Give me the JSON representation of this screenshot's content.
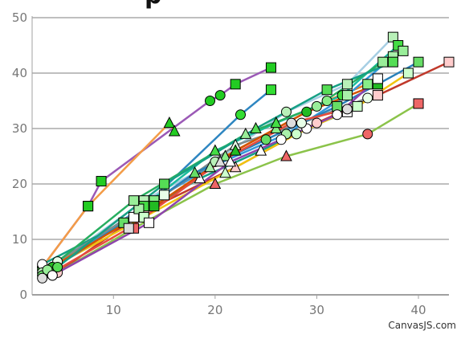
{
  "credit": "CanvasJS.com",
  "title_fragment": "p",
  "colors": {
    "grid": "#bfbfbf",
    "axis": "#a0a0a0",
    "marker_stroke": "#000000"
  },
  "chart_data": {
    "type": "line",
    "title": "",
    "xlabel": "",
    "ylabel": "",
    "xlim": [
      2,
      43
    ],
    "ylim": [
      0,
      50
    ],
    "x_ticks": [
      10,
      20,
      30,
      40
    ],
    "y_ticks": [
      0,
      10,
      20,
      30,
      40,
      50
    ],
    "grid": "horizontal",
    "legend": "none",
    "series": [
      {
        "color": "#9b59b6",
        "x": [
          3,
          7.5,
          8.8,
          19.5,
          20.5,
          22,
          25.5
        ],
        "y": [
          5,
          16,
          20.5,
          35,
          36,
          38,
          41
        ],
        "markers": [
          "circle",
          "square",
          "square",
          "circle",
          "circle",
          "square",
          "square"
        ],
        "fill": "#22cc22"
      },
      {
        "color": "#f39c47",
        "x": [
          3,
          7.5,
          15.5,
          16
        ],
        "y": [
          5,
          16,
          31,
          29.5
        ],
        "markers": [
          "circle",
          "square",
          "triangle",
          "triangle"
        ],
        "fill": "#22cc22"
      },
      {
        "color": "#2e86c1",
        "x": [
          3,
          12.5,
          22.5,
          25.5
        ],
        "y": [
          4.5,
          15,
          32.5,
          37
        ],
        "markers": [
          "circle",
          "square",
          "circle",
          "square"
        ],
        "fill": "#33dd33"
      },
      {
        "color": "#a6cee3",
        "x": [
          4,
          13,
          20,
          27,
          33,
          37.5
        ],
        "y": [
          5,
          17,
          24,
          33,
          38,
          46.5
        ],
        "markers": [
          "circle",
          "square",
          "circle",
          "circle",
          "square",
          "square"
        ],
        "fill": "#b8f0b8"
      },
      {
        "color": "#c0392b",
        "x": [
          4.5,
          13,
          22,
          30,
          36,
          43
        ],
        "y": [
          4,
          15,
          23,
          31,
          36,
          42
        ],
        "markers": [
          "circle",
          "square",
          "triangle",
          "circle",
          "square",
          "square"
        ],
        "fill": "#ffcccc"
      },
      {
        "color": "#8bc34a",
        "x": [
          4,
          12,
          20,
          27,
          35,
          40
        ],
        "y": [
          3.5,
          12,
          20,
          25,
          29,
          34.5
        ],
        "markers": [
          "circle",
          "square",
          "triangle",
          "triangle",
          "circle",
          "square"
        ],
        "fill": "#ee6666"
      },
      {
        "color": "#16a085",
        "x": [
          3,
          12,
          18.5,
          24.5,
          29,
          33
        ],
        "y": [
          5.5,
          14,
          21,
          26,
          30,
          33
        ],
        "markers": [
          "circle",
          "square",
          "triangle",
          "triangle",
          "circle",
          "square"
        ],
        "fill": "#ffffff"
      },
      {
        "color": "#e67e22",
        "x": [
          4,
          14,
          21,
          26,
          31,
          35
        ],
        "y": [
          5,
          17,
          25,
          30,
          35,
          38
        ],
        "markers": [
          "circle",
          "square",
          "triangle",
          "triangle",
          "circle",
          "square"
        ],
        "fill": "#88ee88"
      },
      {
        "color": "#1abc9c",
        "x": [
          3.5,
          13,
          20,
          26,
          32.5,
          38
        ],
        "y": [
          4,
          16,
          26,
          31,
          36,
          45
        ],
        "markers": [
          "circle",
          "square",
          "triangle",
          "triangle",
          "circle",
          "square"
        ],
        "fill": "#44dd44"
      },
      {
        "color": "#3498db",
        "x": [
          4,
          12.5,
          19.5,
          27,
          33,
          37.5
        ],
        "y": [
          4.5,
          15.5,
          23,
          29,
          36,
          43
        ],
        "markers": [
          "circle",
          "square",
          "triangle",
          "circle",
          "square",
          "square"
        ],
        "fill": "#aaf0aa"
      },
      {
        "color": "#f1c40f",
        "x": [
          3,
          13,
          21,
          28,
          34,
          39
        ],
        "y": [
          4,
          14,
          22,
          29,
          34,
          40
        ],
        "markers": [
          "circle",
          "square",
          "triangle",
          "circle",
          "square",
          "square"
        ],
        "fill": "#ccffcc"
      },
      {
        "color": "#7f8c8d",
        "x": [
          4.5,
          15,
          22,
          28.5,
          35
        ],
        "y": [
          6,
          18,
          27,
          31,
          35.5
        ],
        "markers": [
          "circle",
          "square",
          "triangle",
          "circle",
          "circle"
        ],
        "fill": "#e8ffe8"
      },
      {
        "color": "#2980b9",
        "x": [
          3,
          11,
          18,
          25,
          32,
          40
        ],
        "y": [
          3.5,
          13,
          22,
          28,
          34,
          42
        ],
        "markers": [
          "circle",
          "square",
          "triangle",
          "circle",
          "square",
          "square"
        ],
        "fill": "#66dd66"
      },
      {
        "color": "#d35400",
        "x": [
          4,
          14,
          22,
          29,
          36
        ],
        "y": [
          5,
          16,
          26,
          33,
          38
        ],
        "markers": [
          "circle",
          "square",
          "triangle",
          "circle",
          "square"
        ],
        "fill": "#22bb22"
      },
      {
        "color": "#27ae60",
        "x": [
          3.5,
          12,
          23,
          30,
          36.5,
          38.5
        ],
        "y": [
          4.5,
          17,
          29,
          34,
          42,
          44
        ],
        "markers": [
          "circle",
          "square",
          "triangle",
          "circle",
          "square",
          "square"
        ],
        "fill": "#99ee99"
      },
      {
        "color": "#8e44ad",
        "x": [
          4,
          13.5,
          21.5,
          26.5,
          32,
          36
        ],
        "y": [
          3.5,
          13,
          24,
          28,
          32.5,
          39
        ],
        "markers": [
          "circle",
          "square",
          "triangle",
          "circle",
          "circle",
          "square"
        ],
        "fill": "#ffffff"
      },
      {
        "color": "#16a085",
        "x": [
          4.5,
          15,
          24,
          31,
          37.5
        ],
        "y": [
          5,
          20,
          30,
          37,
          42
        ],
        "markers": [
          "circle",
          "square",
          "triangle",
          "square",
          "square"
        ],
        "fill": "#55dd55"
      },
      {
        "color": "#e74c3c",
        "x": [
          3,
          11.5,
          20.5,
          27.5,
          33
        ],
        "y": [
          3,
          12,
          24,
          31,
          33.5
        ],
        "markers": [
          "circle",
          "square",
          "triangle",
          "circle",
          "circle"
        ],
        "fill": "#dddddd"
      }
    ]
  }
}
